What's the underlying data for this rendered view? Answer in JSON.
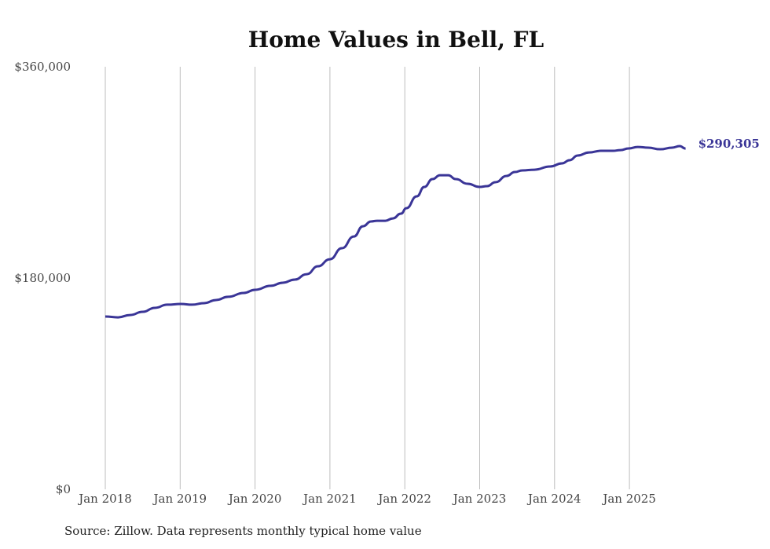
{
  "chart_data": {
    "type": "line",
    "title": "Home Values in Bell, FL",
    "xlabel": "",
    "ylabel": "",
    "ylim": [
      0,
      360000
    ],
    "xlim": [
      2018.0,
      2025.75
    ],
    "y_ticks": [
      {
        "value": 0,
        "label": "$0"
      },
      {
        "value": 180000,
        "label": "$180,000"
      },
      {
        "value": 360000,
        "label": "$360,000"
      }
    ],
    "x_ticks": [
      {
        "value": 2018,
        "label": "Jan 2018"
      },
      {
        "value": 2019,
        "label": "Jan 2019"
      },
      {
        "value": 2020,
        "label": "Jan 2020"
      },
      {
        "value": 2021,
        "label": "Jan 2021"
      },
      {
        "value": 2022,
        "label": "Jan 2022"
      },
      {
        "value": 2023,
        "label": "Jan 2023"
      },
      {
        "value": 2024,
        "label": "Jan 2024"
      },
      {
        "value": 2025,
        "label": "Jan 2025"
      }
    ],
    "grid": "vertical",
    "series": [
      {
        "name": "Typical home value",
        "color": "#3a3597",
        "end_label": "$290,305",
        "x": [
          2018.0,
          2018.17,
          2018.33,
          2018.5,
          2018.66,
          2018.83,
          2019.01,
          2019.16,
          2019.32,
          2019.48,
          2019.64,
          2019.85,
          2020.0,
          2020.21,
          2020.37,
          2020.53,
          2020.69,
          2020.84,
          2021.0,
          2021.16,
          2021.32,
          2021.44,
          2021.55,
          2021.63,
          2021.74,
          2021.84,
          2021.95,
          2022.02,
          2022.16,
          2022.26,
          2022.37,
          2022.47,
          2022.58,
          2022.68,
          2022.84,
          2023.0,
          2023.1,
          2023.21,
          2023.36,
          2023.47,
          2023.57,
          2023.73,
          2023.94,
          2024.1,
          2024.2,
          2024.31,
          2024.46,
          2024.62,
          2024.78,
          2024.88,
          2024.99,
          2025.11,
          2025.25,
          2025.41,
          2025.57,
          2025.67,
          2025.75
        ],
        "values": [
          147200,
          146500,
          148500,
          151200,
          154600,
          157300,
          157900,
          157300,
          158600,
          161300,
          164000,
          167300,
          170000,
          173400,
          176000,
          178700,
          183300,
          190000,
          196000,
          205400,
          215400,
          224100,
          228200,
          228800,
          228800,
          230800,
          234900,
          239500,
          249600,
          257600,
          264300,
          267600,
          267600,
          264300,
          260300,
          257600,
          258300,
          261600,
          267000,
          270300,
          271700,
          272300,
          275000,
          277700,
          280400,
          284400,
          287000,
          288400,
          288400,
          289000,
          290400,
          291700,
          291100,
          289700,
          291100,
          292400,
          290305
        ]
      }
    ]
  },
  "source": "Source: Zillow. Data represents monthly typical home value"
}
